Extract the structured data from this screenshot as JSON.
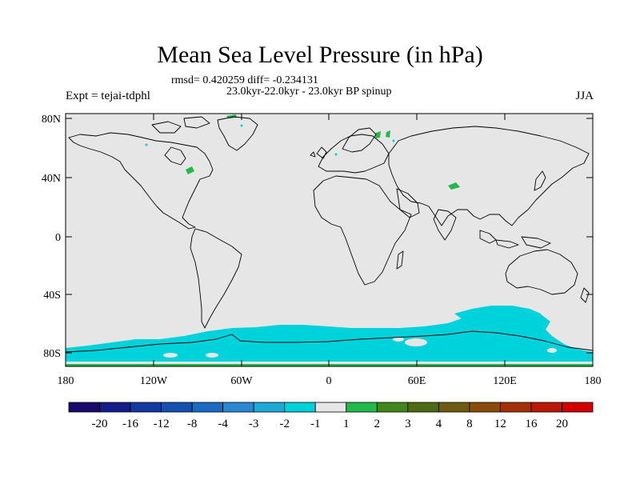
{
  "title": "Mean Sea Level Pressure (in hPa)",
  "stats_line": "rmsd= 0.420259  diff= -0.234131",
  "period_line": "23.0kyr-22.0kyr - 23.0kyr BP spinup",
  "experiment_label": "Expt = tejai-tdphl",
  "season": "JJA",
  "latitude_labels": [
    "80N",
    "40N",
    "0",
    "40S",
    "80S"
  ],
  "longitude_labels": [
    "180",
    "120W",
    "60W",
    "0",
    "60E",
    "120E",
    "180"
  ],
  "colorbar": {
    "labels": [
      "-20",
      "-16",
      "-12",
      "-8",
      "-4",
      "-3",
      "-2",
      "-1",
      "1",
      "2",
      "3",
      "4",
      "8",
      "12",
      "16",
      "20"
    ],
    "colors": [
      "#1a0a6e",
      "#141c8c",
      "#1238a2",
      "#1450b2",
      "#1a6ac4",
      "#2a88d2",
      "#1eaad8",
      "#00d2dc",
      "#e6e6e6",
      "#22b84a",
      "#44861e",
      "#4e6a14",
      "#6e5a10",
      "#8a4a0c",
      "#a4300a",
      "#bc1808",
      "#d40000"
    ]
  },
  "colors": {
    "background_field": "#e6e6e6",
    "negative_anomaly": "#00d2dc",
    "positive_anomaly": "#22b84a",
    "coastline": "#000000"
  }
}
